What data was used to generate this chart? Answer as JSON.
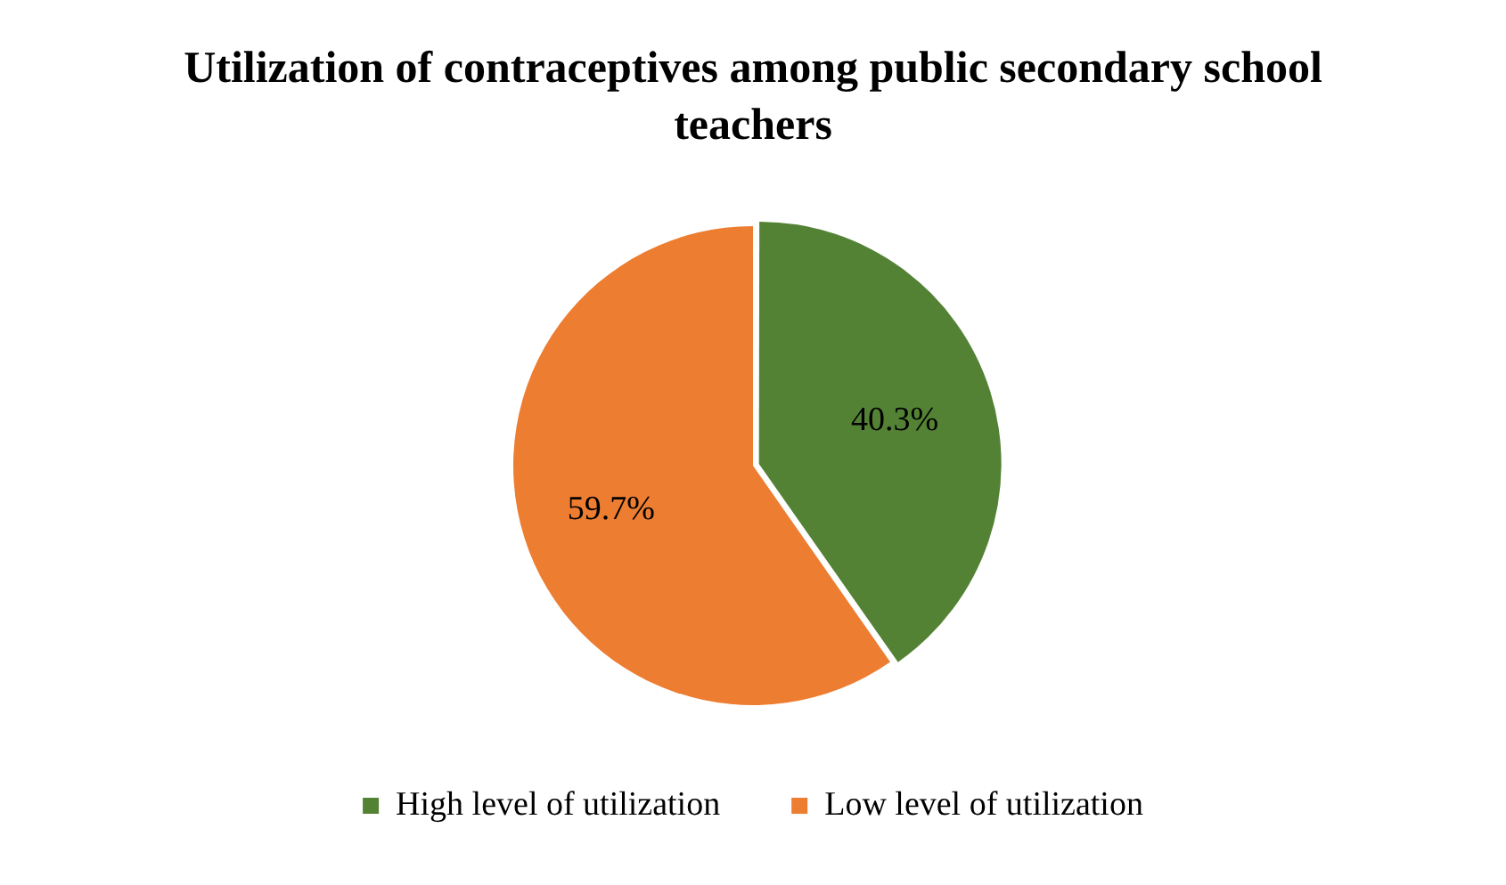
{
  "chart_data": {
    "type": "pie",
    "title": "Utilization of contraceptives among public secondary school teachers",
    "categories": [
      "High level of utilization",
      "Low level of utilization"
    ],
    "values": [
      40.3,
      59.7
    ],
    "colors": [
      "#548235",
      "#ed7d31"
    ],
    "value_labels": [
      "40.3%",
      "59.7%"
    ],
    "legend": "bottom"
  }
}
